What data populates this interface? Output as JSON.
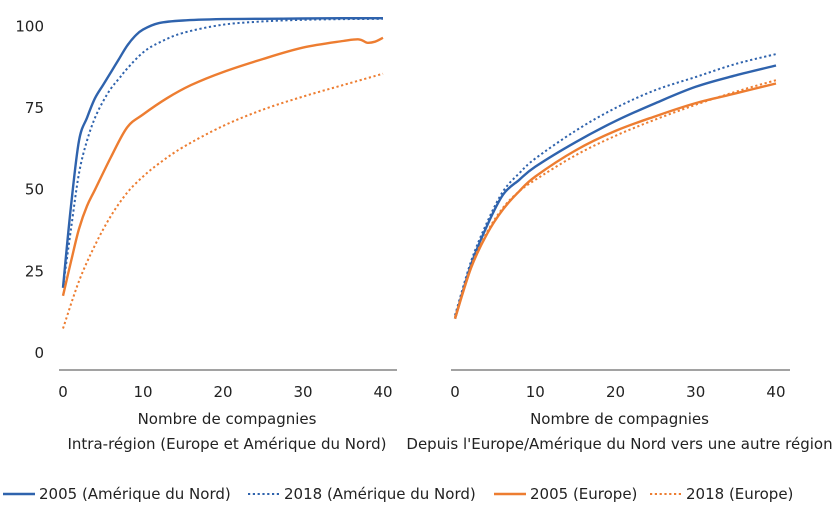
{
  "chart_data": [
    {
      "type": "line",
      "xlabel": "Nombre de compagnies",
      "subtitle": "Intra-région (Europe et Amérique du Nord)",
      "xlim": [
        0,
        41
      ],
      "ylim": [
        0,
        105
      ],
      "xticks": [
        0,
        10,
        20,
        30,
        40
      ],
      "yticks": [
        0,
        25,
        50,
        75,
        100
      ],
      "series": [
        {
          "name": "2005 (Amérique du Nord)",
          "style": "solid",
          "color": "#2f63ad",
          "x": [
            0,
            1,
            2,
            3,
            4,
            5,
            6,
            7,
            8,
            9,
            10,
            12,
            15,
            20,
            25,
            30,
            35,
            40
          ],
          "y": [
            20,
            45,
            65,
            72,
            78,
            82,
            86,
            90,
            94,
            97,
            99,
            101,
            101.8,
            102.2,
            102.3,
            102.4,
            102.5,
            102.5
          ]
        },
        {
          "name": "2018 (Amérique du Nord)",
          "style": "dotted",
          "color": "#2f63ad",
          "x": [
            0,
            1,
            2,
            3,
            4,
            5,
            6,
            7,
            8,
            10,
            12,
            15,
            20,
            25,
            30,
            35,
            40
          ],
          "y": [
            20,
            38,
            55,
            65,
            72,
            77,
            81,
            84,
            87,
            92,
            95,
            98,
            100.5,
            101.5,
            102,
            102.2,
            102.3
          ]
        },
        {
          "name": "2005 (Europe)",
          "style": "solid",
          "color": "#ed7d31",
          "x": [
            0,
            1,
            2,
            3,
            4,
            6,
            8,
            10,
            13,
            16,
            20,
            25,
            30,
            35,
            37,
            38,
            39,
            40
          ],
          "y": [
            17.5,
            28,
            38,
            45,
            50,
            60,
            69,
            73,
            78,
            82,
            86,
            90,
            93.5,
            95.5,
            96,
            95,
            95.3,
            96.5
          ]
        },
        {
          "name": "2018 (Europe)",
          "style": "dotted",
          "color": "#ed7d31",
          "x": [
            0,
            2,
            4,
            6,
            8,
            10,
            12,
            15,
            20,
            25,
            30,
            35,
            40
          ],
          "y": [
            7.5,
            22,
            33,
            42,
            49,
            54,
            58,
            63,
            69.5,
            74.5,
            78.5,
            82,
            85.5
          ]
        }
      ]
    },
    {
      "type": "line",
      "xlabel": "Nombre de compagnies",
      "subtitle": "Depuis l'Europe/Amérique du Nord vers une autre région",
      "xlim": [
        0,
        41
      ],
      "ylim": [
        0,
        105
      ],
      "xticks": [
        0,
        10,
        20,
        30,
        40
      ],
      "series": [
        {
          "name": "2005 (Amérique du Nord)",
          "style": "solid",
          "color": "#2f63ad",
          "x": [
            0,
            2,
            4,
            6,
            8,
            10,
            15,
            20,
            25,
            30,
            35,
            40
          ],
          "y": [
            10.5,
            27,
            39,
            48.5,
            53,
            57,
            64.5,
            71,
            76.5,
            81.5,
            85,
            88
          ]
        },
        {
          "name": "2018 (Amérique du Nord)",
          "style": "dotted",
          "color": "#2f63ad",
          "x": [
            0,
            2,
            4,
            6,
            8,
            10,
            15,
            20,
            25,
            30,
            35,
            40
          ],
          "y": [
            11.5,
            28,
            40,
            49.5,
            55,
            59.5,
            68,
            75,
            80.5,
            84.5,
            88.5,
            91.5
          ]
        },
        {
          "name": "2005 (Europe)",
          "style": "solid",
          "color": "#ed7d31",
          "x": [
            0,
            2,
            4,
            6,
            8,
            10,
            15,
            20,
            25,
            30,
            35,
            40
          ],
          "y": [
            10.5,
            26,
            36.5,
            44,
            49.5,
            54,
            62,
            68,
            72.5,
            76.5,
            79.5,
            82.5
          ]
        },
        {
          "name": "2018 (Europe)",
          "style": "dotted",
          "color": "#ed7d31",
          "x": [
            0,
            2,
            4,
            6,
            8,
            10,
            15,
            20,
            25,
            30,
            35,
            40
          ],
          "y": [
            11,
            26.5,
            37,
            44.5,
            49.5,
            53,
            60.5,
            66.5,
            71.5,
            76,
            80,
            83.5
          ]
        }
      ]
    }
  ],
  "legend": {
    "position": "bottom",
    "items": [
      {
        "label": "2005 (Amérique du Nord)",
        "style": "solid",
        "color": "#2f63ad"
      },
      {
        "label": "2018 (Amérique du Nord)",
        "style": "dotted",
        "color": "#2f63ad"
      },
      {
        "label": "2005 (Europe)",
        "style": "solid",
        "color": "#ed7d31"
      },
      {
        "label": "2018 (Europe)",
        "style": "dotted",
        "color": "#ed7d31"
      }
    ]
  }
}
